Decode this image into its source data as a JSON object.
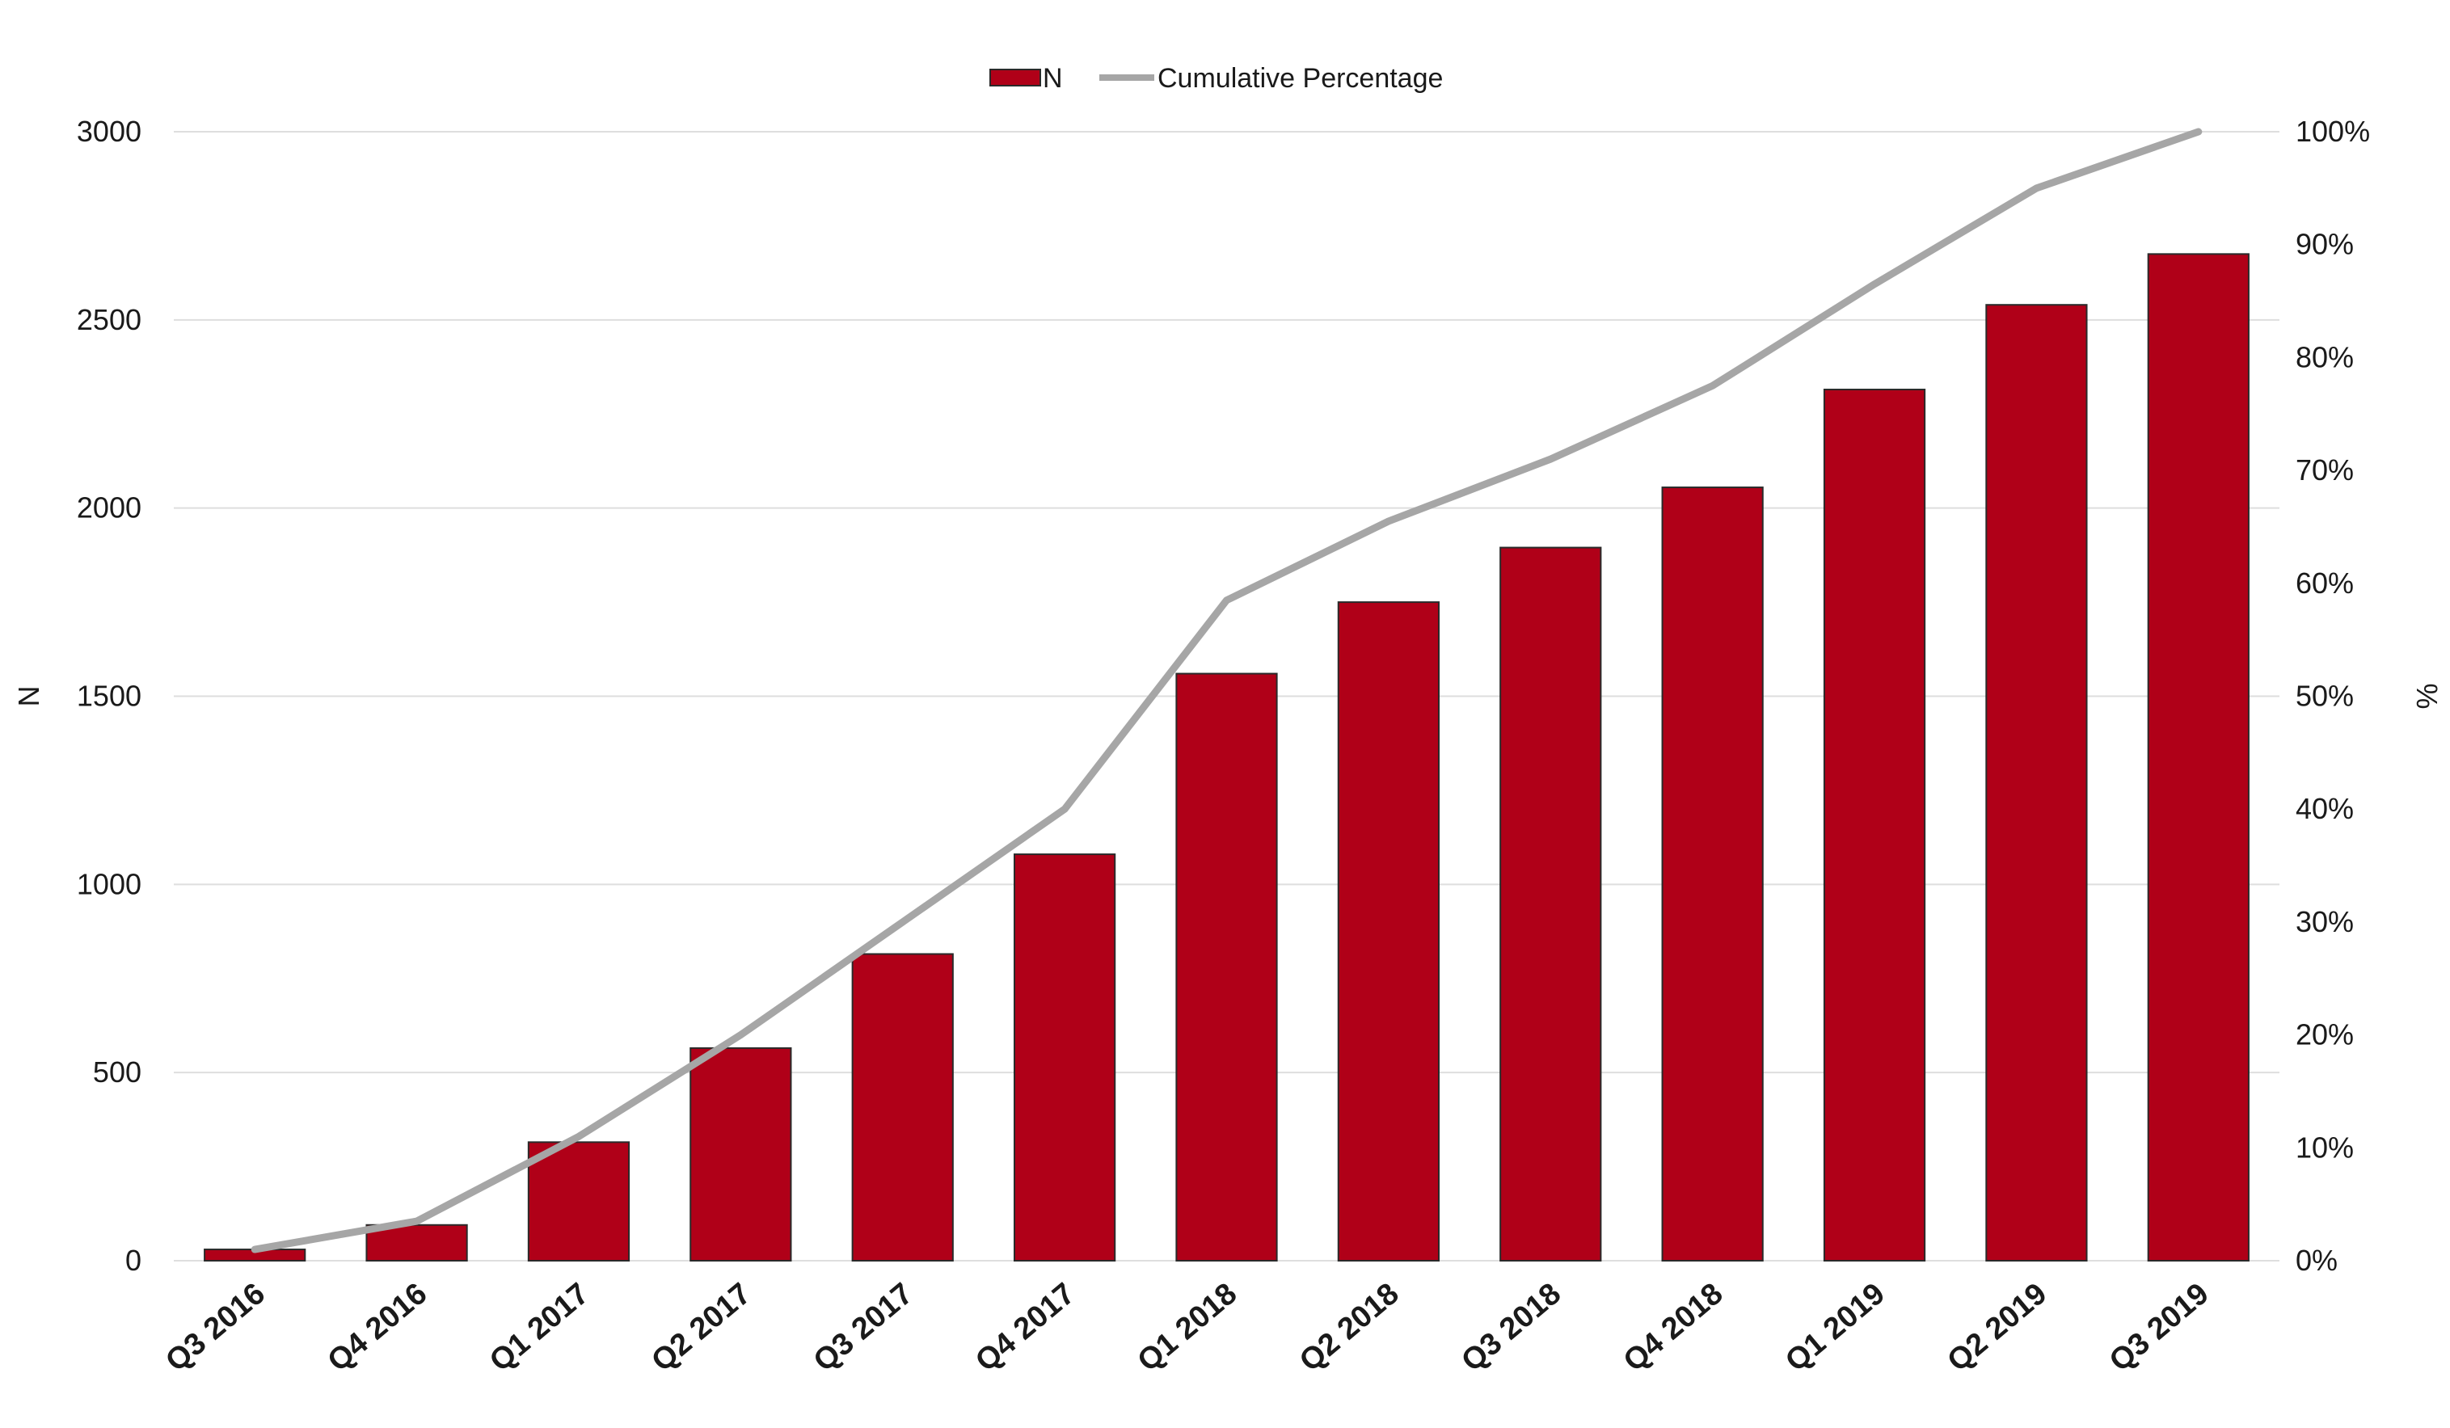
{
  "chart_data": {
    "type": "bar",
    "title": "",
    "categories": [
      "Q3 2016",
      "Q4 2016",
      "Q1 2017",
      "Q2 2017",
      "Q3 2017",
      "Q4 2017",
      "Q1 2018",
      "Q2 2018",
      "Q3 2018",
      "Q4 2018",
      "Q1 2019",
      "Q2 2019",
      "Q3 2019"
    ],
    "series": [
      {
        "name": "N",
        "type": "bar",
        "axis": "left",
        "color": "#b00018",
        "values": [
          30,
          95,
          315,
          565,
          815,
          1080,
          1560,
          1750,
          1895,
          2055,
          2315,
          2540,
          2675
        ]
      },
      {
        "name": "Cumulative Percentage",
        "type": "line",
        "axis": "right",
        "color": "#a6a6a6",
        "values": [
          0.01,
          0.035,
          0.11,
          0.2,
          0.3,
          0.4,
          0.585,
          0.655,
          0.71,
          0.775,
          0.865,
          0.95,
          1.0
        ]
      }
    ],
    "ylabel": "N",
    "ylim": [
      0,
      3000
    ],
    "yticks": [
      0,
      500,
      1000,
      1500,
      2000,
      2500,
      3000
    ],
    "ylabel_right": "%",
    "ylim_right": [
      0,
      1
    ],
    "yticks_right": [
      "0%",
      "10%",
      "20%",
      "30%",
      "40%",
      "50%",
      "60%",
      "70%",
      "80%",
      "90%",
      "100%"
    ],
    "grid": true,
    "legend_position": "top-center"
  }
}
